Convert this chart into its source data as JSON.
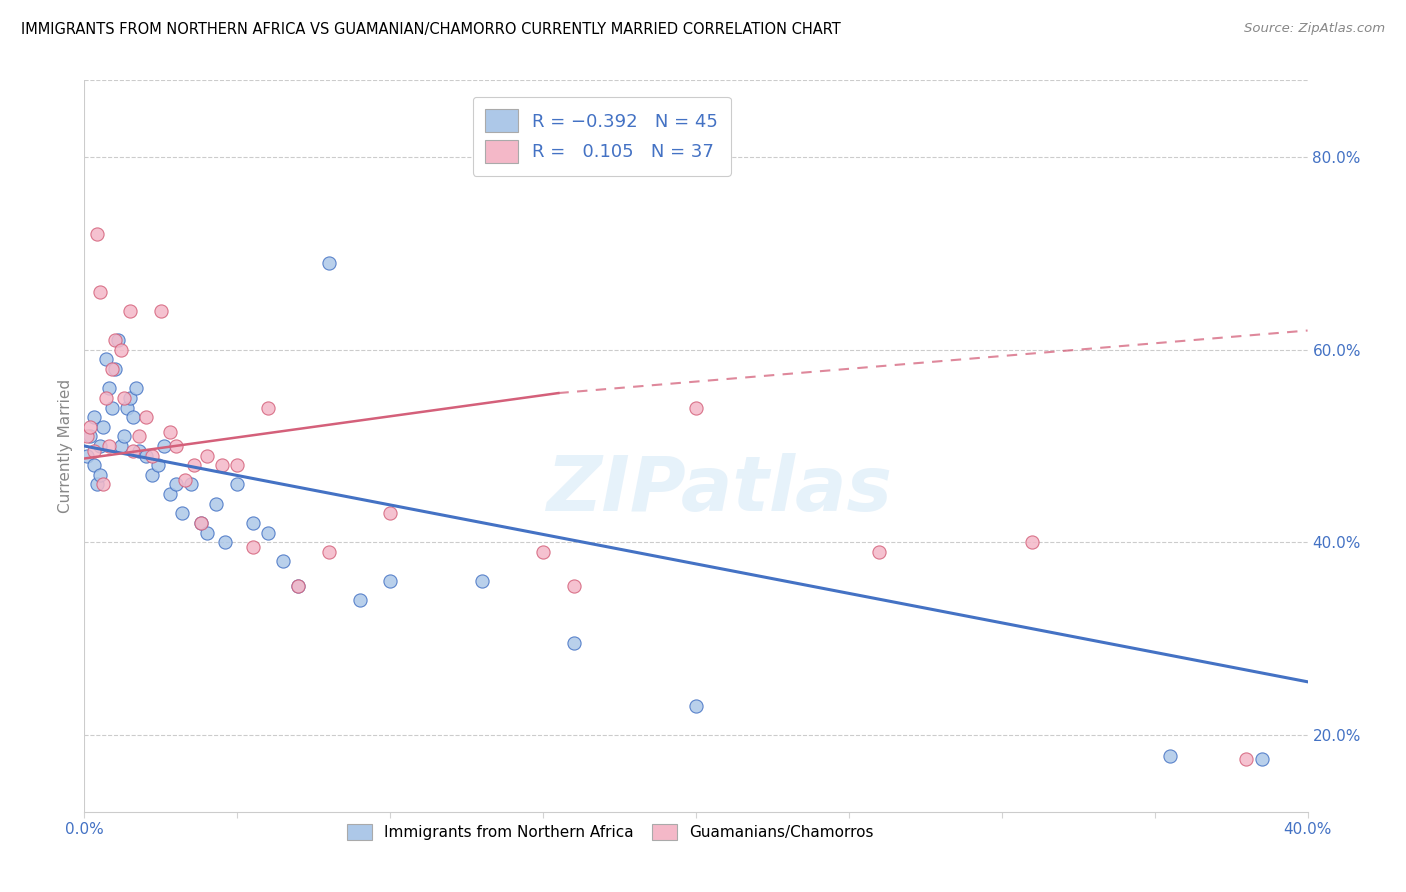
{
  "title": "IMMIGRANTS FROM NORTHERN AFRICA VS GUAMANIAN/CHAMORRO CURRENTLY MARRIED CORRELATION CHART",
  "source": "Source: ZipAtlas.com",
  "ylabel": "Currently Married",
  "xlim": [
    0.0,
    0.4
  ],
  "ylim": [
    0.12,
    0.88
  ],
  "y_ticks_right": [
    0.2,
    0.4,
    0.6,
    0.8
  ],
  "y_tick_labels_right": [
    "20.0%",
    "40.0%",
    "60.0%",
    "80.0%"
  ],
  "blue_color": "#adc8e8",
  "blue_line_color": "#4472c4",
  "pink_color": "#f4b8c8",
  "pink_line_color": "#d4607a",
  "R_blue": -0.392,
  "N_blue": 45,
  "R_pink": 0.105,
  "N_pink": 37,
  "legend_label_blue": "Immigrants from Northern Africa",
  "legend_label_pink": "Guamanians/Chamorros",
  "watermark": "ZIPatlas",
  "blue_line_x0": 0.0,
  "blue_line_y0": 0.5,
  "blue_line_x1": 0.4,
  "blue_line_y1": 0.255,
  "pink_line_solid_x0": 0.0,
  "pink_line_solid_y0": 0.487,
  "pink_line_solid_x1": 0.155,
  "pink_line_solid_y1": 0.555,
  "pink_line_dash_x0": 0.155,
  "pink_line_dash_y0": 0.555,
  "pink_line_dash_x1": 0.4,
  "pink_line_dash_y1": 0.62,
  "blue_scatter_x": [
    0.001,
    0.002,
    0.003,
    0.003,
    0.004,
    0.005,
    0.005,
    0.006,
    0.007,
    0.008,
    0.009,
    0.01,
    0.011,
    0.012,
    0.013,
    0.014,
    0.015,
    0.016,
    0.017,
    0.018,
    0.02,
    0.022,
    0.024,
    0.026,
    0.028,
    0.03,
    0.032,
    0.035,
    0.038,
    0.04,
    0.043,
    0.046,
    0.05,
    0.055,
    0.06,
    0.065,
    0.07,
    0.08,
    0.09,
    0.1,
    0.13,
    0.16,
    0.2,
    0.355,
    0.385
  ],
  "blue_scatter_y": [
    0.49,
    0.51,
    0.53,
    0.48,
    0.46,
    0.5,
    0.47,
    0.52,
    0.59,
    0.56,
    0.54,
    0.58,
    0.61,
    0.5,
    0.51,
    0.54,
    0.55,
    0.53,
    0.56,
    0.495,
    0.49,
    0.47,
    0.48,
    0.5,
    0.45,
    0.46,
    0.43,
    0.46,
    0.42,
    0.41,
    0.44,
    0.4,
    0.46,
    0.42,
    0.41,
    0.38,
    0.355,
    0.69,
    0.34,
    0.36,
    0.36,
    0.295,
    0.23,
    0.178,
    0.175
  ],
  "pink_scatter_x": [
    0.001,
    0.002,
    0.003,
    0.004,
    0.005,
    0.006,
    0.007,
    0.008,
    0.009,
    0.01,
    0.012,
    0.013,
    0.015,
    0.016,
    0.018,
    0.02,
    0.022,
    0.025,
    0.028,
    0.03,
    0.033,
    0.036,
    0.038,
    0.04,
    0.045,
    0.05,
    0.055,
    0.06,
    0.07,
    0.08,
    0.1,
    0.15,
    0.16,
    0.2,
    0.26,
    0.31,
    0.38
  ],
  "pink_scatter_y": [
    0.51,
    0.52,
    0.495,
    0.72,
    0.66,
    0.46,
    0.55,
    0.5,
    0.58,
    0.61,
    0.6,
    0.55,
    0.64,
    0.495,
    0.51,
    0.53,
    0.49,
    0.64,
    0.515,
    0.5,
    0.465,
    0.48,
    0.42,
    0.49,
    0.48,
    0.48,
    0.395,
    0.54,
    0.355,
    0.39,
    0.43,
    0.39,
    0.355,
    0.54,
    0.39,
    0.4,
    0.175
  ]
}
